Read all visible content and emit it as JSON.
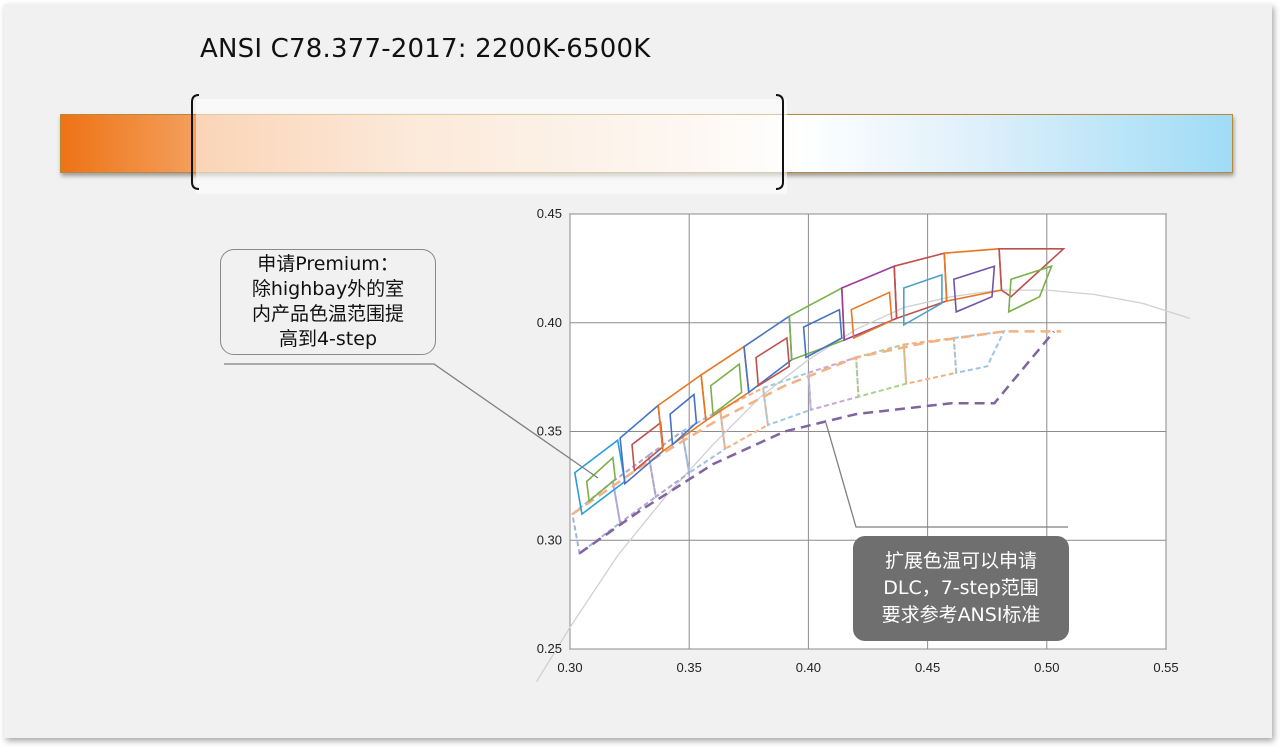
{
  "slide": {
    "title": "ANSI C78.377-2017: 2200K-6500K",
    "callout_premium": "申请Premium：\n除highbay外的室\n内产品色温范围提\n高到4-step",
    "callout_dlc": "扩展色温可以申请\nDLC，7-step范围\n要求参考ANSI标准"
  },
  "colors": {
    "accent_orange": "#ee7316",
    "accent_blue": "#9fdcf6",
    "callout_bg": "#6f6f6f"
  },
  "chart_data": {
    "type": "scatter",
    "title": "",
    "xlabel": "",
    "ylabel": "",
    "xlim": [
      0.3,
      0.55
    ],
    "ylim": [
      0.25,
      0.45
    ],
    "x_ticks": [
      "0.30",
      "0.35",
      "0.40",
      "0.45",
      "0.50",
      "0.55"
    ],
    "y_ticks": [
      "0.45",
      "0.40",
      "0.35",
      "0.30",
      "0.25"
    ],
    "grid": true,
    "planckian_locus": [
      [
        0.286,
        0.235
      ],
      [
        0.3,
        0.26
      ],
      [
        0.32,
        0.293
      ],
      [
        0.34,
        0.32
      ],
      [
        0.36,
        0.344
      ],
      [
        0.38,
        0.366
      ],
      [
        0.4,
        0.383
      ],
      [
        0.42,
        0.397
      ],
      [
        0.44,
        0.407
      ],
      [
        0.46,
        0.412
      ],
      [
        0.48,
        0.415
      ],
      [
        0.5,
        0.415
      ],
      [
        0.52,
        0.413
      ],
      [
        0.54,
        0.409
      ],
      [
        0.56,
        0.402
      ]
    ],
    "premium_quads": [
      {
        "color": "#27a0dc",
        "points": [
          [
            0.302,
            0.331
          ],
          [
            0.32,
            0.346
          ],
          [
            0.323,
            0.327
          ],
          [
            0.305,
            0.312
          ]
        ]
      },
      {
        "color": "#7ab04a",
        "points": [
          [
            0.307,
            0.327
          ],
          [
            0.318,
            0.338
          ],
          [
            0.319,
            0.328
          ],
          [
            0.308,
            0.318
          ]
        ]
      },
      {
        "color": "#4472c4",
        "points": [
          [
            0.321,
            0.347
          ],
          [
            0.337,
            0.362
          ],
          [
            0.339,
            0.341
          ],
          [
            0.323,
            0.326
          ]
        ]
      },
      {
        "color": "#c0504d",
        "points": [
          [
            0.326,
            0.344
          ],
          [
            0.338,
            0.354
          ],
          [
            0.339,
            0.343
          ],
          [
            0.327,
            0.332
          ]
        ]
      },
      {
        "color": "#e87722",
        "points": [
          [
            0.337,
            0.362
          ],
          [
            0.355,
            0.376
          ],
          [
            0.357,
            0.355
          ],
          [
            0.339,
            0.341
          ]
        ]
      },
      {
        "color": "#4472c4",
        "points": [
          [
            0.342,
            0.358
          ],
          [
            0.352,
            0.367
          ],
          [
            0.353,
            0.354
          ],
          [
            0.343,
            0.344
          ]
        ]
      },
      {
        "color": "#e87722",
        "points": [
          [
            0.355,
            0.376
          ],
          [
            0.373,
            0.389
          ],
          [
            0.375,
            0.368
          ],
          [
            0.357,
            0.355
          ]
        ]
      },
      {
        "color": "#7ab04a",
        "points": [
          [
            0.359,
            0.371
          ],
          [
            0.371,
            0.381
          ],
          [
            0.372,
            0.368
          ],
          [
            0.36,
            0.358
          ]
        ]
      },
      {
        "color": "#4472c4",
        "points": [
          [
            0.373,
            0.389
          ],
          [
            0.392,
            0.403
          ],
          [
            0.393,
            0.383
          ],
          [
            0.375,
            0.368
          ]
        ]
      },
      {
        "color": "#c0504d",
        "points": [
          [
            0.378,
            0.384
          ],
          [
            0.391,
            0.393
          ],
          [
            0.392,
            0.38
          ],
          [
            0.379,
            0.371
          ]
        ]
      },
      {
        "color": "#7ab04a",
        "points": [
          [
            0.392,
            0.403
          ],
          [
            0.414,
            0.416
          ],
          [
            0.415,
            0.392
          ],
          [
            0.393,
            0.383
          ]
        ]
      },
      {
        "color": "#4472c4",
        "points": [
          [
            0.398,
            0.398
          ],
          [
            0.413,
            0.406
          ],
          [
            0.414,
            0.393
          ],
          [
            0.399,
            0.384
          ]
        ]
      },
      {
        "color": "#9e3a9e",
        "points": [
          [
            0.414,
            0.416
          ],
          [
            0.436,
            0.426
          ],
          [
            0.437,
            0.402
          ],
          [
            0.415,
            0.392
          ]
        ]
      },
      {
        "color": "#e87722",
        "points": [
          [
            0.418,
            0.406
          ],
          [
            0.434,
            0.414
          ],
          [
            0.435,
            0.401
          ],
          [
            0.419,
            0.393
          ]
        ]
      },
      {
        "color": "#c0504d",
        "points": [
          [
            0.436,
            0.426
          ],
          [
            0.457,
            0.432
          ],
          [
            0.458,
            0.41
          ],
          [
            0.437,
            0.402
          ]
        ]
      },
      {
        "color": "#4ba3c7",
        "points": [
          [
            0.44,
            0.416
          ],
          [
            0.456,
            0.422
          ],
          [
            0.456,
            0.409
          ],
          [
            0.44,
            0.399
          ]
        ]
      },
      {
        "color": "#e87722",
        "points": [
          [
            0.457,
            0.432
          ],
          [
            0.48,
            0.434
          ],
          [
            0.481,
            0.415
          ],
          [
            0.458,
            0.41
          ]
        ]
      },
      {
        "color": "#7055a8",
        "points": [
          [
            0.461,
            0.42
          ],
          [
            0.478,
            0.426
          ],
          [
            0.477,
            0.412
          ],
          [
            0.462,
            0.405
          ]
        ]
      },
      {
        "color": "#c0504d",
        "points": [
          [
            0.48,
            0.434
          ],
          [
            0.507,
            0.434
          ],
          [
            0.485,
            0.412
          ],
          [
            0.481,
            0.415
          ]
        ]
      },
      {
        "color": "#7ab04a",
        "points": [
          [
            0.485,
            0.42
          ],
          [
            0.502,
            0.426
          ],
          [
            0.497,
            0.412
          ],
          [
            0.484,
            0.405
          ]
        ]
      }
    ],
    "dlc_quads": [
      {
        "color": "#a0b4dc",
        "points": [
          [
            0.301,
            0.312
          ],
          [
            0.318,
            0.327
          ],
          [
            0.321,
            0.308
          ],
          [
            0.304,
            0.294
          ]
        ]
      },
      {
        "color": "#b6a3d6",
        "points": [
          [
            0.318,
            0.327
          ],
          [
            0.333,
            0.339
          ],
          [
            0.336,
            0.32
          ],
          [
            0.321,
            0.308
          ]
        ]
      },
      {
        "color": "#a9a9c8",
        "points": [
          [
            0.333,
            0.339
          ],
          [
            0.347,
            0.35
          ],
          [
            0.35,
            0.331
          ],
          [
            0.336,
            0.32
          ]
        ]
      },
      {
        "color": "#a3bfe5",
        "points": [
          [
            0.347,
            0.35
          ],
          [
            0.363,
            0.36
          ],
          [
            0.365,
            0.342
          ],
          [
            0.35,
            0.331
          ]
        ]
      },
      {
        "color": "#f4b183",
        "points": [
          [
            0.363,
            0.36
          ],
          [
            0.381,
            0.37
          ],
          [
            0.383,
            0.353
          ],
          [
            0.365,
            0.342
          ]
        ]
      },
      {
        "color": "#9ec9e1",
        "points": [
          [
            0.381,
            0.37
          ],
          [
            0.4,
            0.377
          ],
          [
            0.401,
            0.36
          ],
          [
            0.383,
            0.353
          ]
        ]
      },
      {
        "color": "#c8a7d6",
        "points": [
          [
            0.4,
            0.377
          ],
          [
            0.42,
            0.384
          ],
          [
            0.421,
            0.366
          ],
          [
            0.401,
            0.36
          ]
        ]
      },
      {
        "color": "#a9d18e",
        "points": [
          [
            0.42,
            0.384
          ],
          [
            0.44,
            0.39
          ],
          [
            0.441,
            0.372
          ],
          [
            0.421,
            0.366
          ]
        ]
      },
      {
        "color": "#f4b183",
        "points": [
          [
            0.44,
            0.39
          ],
          [
            0.461,
            0.393
          ],
          [
            0.462,
            0.377
          ],
          [
            0.441,
            0.372
          ]
        ]
      },
      {
        "color": "#9dc3e6",
        "points": [
          [
            0.461,
            0.393
          ],
          [
            0.482,
            0.396
          ],
          [
            0.475,
            0.38
          ],
          [
            0.462,
            0.377
          ]
        ]
      }
    ],
    "dlc_envelope": [
      {
        "color": "#f4b183",
        "points": [
          [
            0.301,
            0.312
          ],
          [
            0.33,
            0.334
          ],
          [
            0.36,
            0.354
          ],
          [
            0.39,
            0.371
          ],
          [
            0.42,
            0.384
          ],
          [
            0.45,
            0.391
          ],
          [
            0.482,
            0.396
          ],
          [
            0.506,
            0.396
          ]
        ]
      },
      {
        "color": "#8064a2",
        "points": [
          [
            0.304,
            0.294
          ],
          [
            0.33,
            0.314
          ],
          [
            0.36,
            0.335
          ],
          [
            0.39,
            0.35
          ],
          [
            0.42,
            0.358
          ],
          [
            0.46,
            0.363
          ],
          [
            0.478,
            0.363
          ],
          [
            0.503,
            0.396
          ]
        ]
      }
    ]
  }
}
